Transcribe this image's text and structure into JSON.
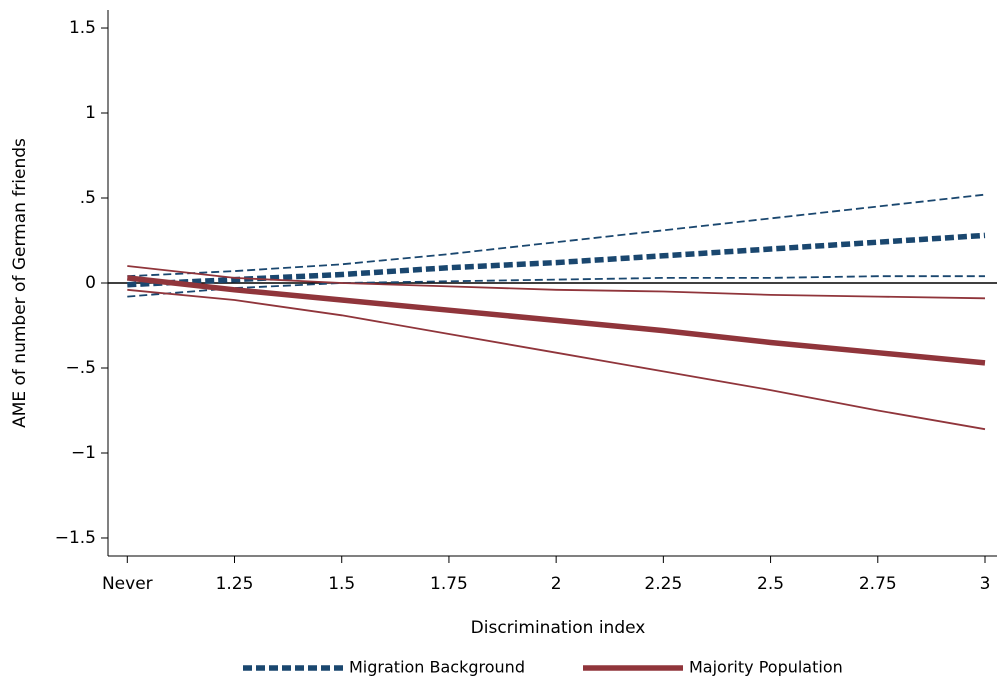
{
  "chart_data": {
    "type": "line",
    "x_label": "Discrimination index",
    "y_label": "AME of number of German friends",
    "x": [
      1,
      1.25,
      1.5,
      1.75,
      2,
      2.25,
      2.5,
      2.75,
      3
    ],
    "series": [
      {
        "name": "Migration Background",
        "color": "#1a476f",
        "dash": true,
        "values": [
          -0.01,
          0.02,
          0.05,
          0.09,
          0.12,
          0.16,
          0.2,
          0.24,
          0.28
        ],
        "upper": [
          0.04,
          0.07,
          0.11,
          0.17,
          0.24,
          0.31,
          0.38,
          0.45,
          0.52
        ],
        "lower": [
          -0.08,
          -0.03,
          0.0,
          0.01,
          0.02,
          0.03,
          0.03,
          0.04,
          0.04
        ]
      },
      {
        "name": "Majority Population",
        "color": "#90353b",
        "dash": false,
        "values": [
          0.03,
          -0.04,
          -0.1,
          -0.16,
          -0.22,
          -0.28,
          -0.35,
          -0.41,
          -0.47
        ],
        "upper": [
          0.1,
          0.03,
          0.0,
          -0.02,
          -0.04,
          -0.05,
          -0.07,
          -0.08,
          -0.09
        ],
        "lower": [
          -0.04,
          -0.1,
          -0.19,
          -0.3,
          -0.41,
          -0.52,
          -0.63,
          -0.75,
          -0.86
        ]
      }
    ],
    "reference_line": 0,
    "xlim": [
      0.955,
      3.028
    ],
    "ylim": [
      -1.606,
      1.606
    ],
    "xticks": [
      {
        "value": 1,
        "label": "Never"
      },
      1.25,
      1.5,
      1.75,
      2,
      2.25,
      2.5,
      2.75,
      3
    ],
    "yticks": [
      {
        "value": -1.5,
        "label": "−1.5"
      },
      {
        "value": -1,
        "label": "−1"
      },
      {
        "value": -0.5,
        "label": "−.5"
      },
      0,
      {
        "value": 0.5,
        "label": ".5"
      },
      1,
      1.5
    ]
  }
}
